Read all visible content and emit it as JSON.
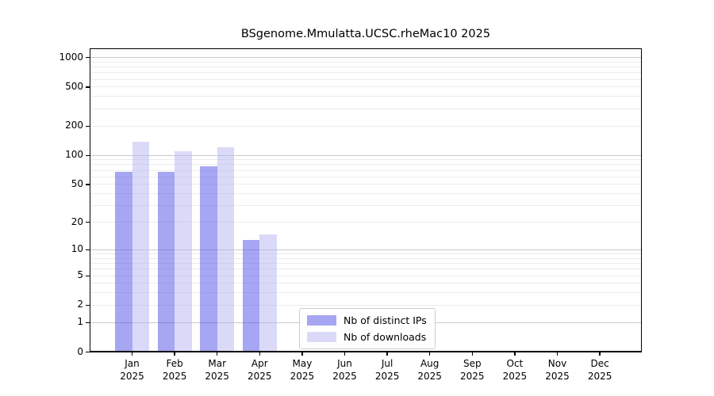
{
  "title": "BSgenome.Mmulatta.UCSC.rheMac10 2025",
  "chart_data": {
    "type": "bar",
    "title": "BSgenome.Mmulatta.UCSC.rheMac10 2025",
    "categories": [
      "Jan 2025",
      "Feb 2025",
      "Mar 2025",
      "Apr 2025",
      "May 2025",
      "Jun 2025",
      "Jul 2025",
      "Aug 2025",
      "Sep 2025",
      "Oct 2025",
      "Nov 2025",
      "Dec 2025"
    ],
    "series": [
      {
        "name": "Nb of distinct IPs",
        "color": "#a6a6f2",
        "values": [
          68,
          68,
          77,
          13,
          0,
          0,
          0,
          0,
          0,
          0,
          0,
          0
        ]
      },
      {
        "name": "Nb of downloads",
        "color": "#dadaf8",
        "values": [
          140,
          111,
          122,
          15,
          0,
          0,
          0,
          0,
          0,
          0,
          0,
          0
        ]
      }
    ],
    "yticks": [
      0,
      1,
      2,
      5,
      10,
      20,
      50,
      100,
      200,
      500,
      1000
    ],
    "scale": "log1p",
    "ylim": [
      0,
      1240
    ],
    "xlabel": "",
    "ylabel": "",
    "grid": "horizontal, minor and major decade lines",
    "legend_position": "inside lower-center",
    "colors": {
      "axis": "#000000",
      "grid_major": "#c9c9c9",
      "grid_minor": "#ececec",
      "background": "#ffffff"
    }
  }
}
